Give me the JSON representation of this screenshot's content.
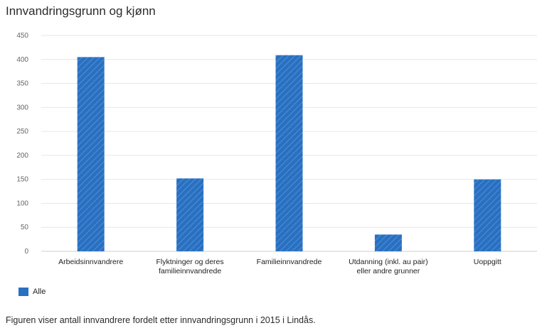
{
  "colors": {
    "bar": "#2a70c1",
    "bar_hatch": "#4e8fd6",
    "grid": "#e6e6e6"
  },
  "caption": "Figuren viser antall innvandrere fordelt etter innvandringsgrunn i 2015 i Lindås.",
  "chart_data": {
    "type": "bar",
    "title": "Innvandringsgrunn og kjønn",
    "xlabel": "",
    "ylabel": "",
    "ylim": [
      0,
      450
    ],
    "yticks": [
      "0",
      "50",
      "100",
      "150",
      "200",
      "250",
      "300",
      "350",
      "400",
      "450"
    ],
    "categories": [
      [
        "Arbeidsinnvandrere"
      ],
      [
        "Flyktninger og deres",
        "familieinnvandrede"
      ],
      [
        "Familieinnvandrede"
      ],
      [
        "Utdanning (inkl. au pair)",
        "eller andre grunner"
      ],
      [
        "Uoppgitt"
      ]
    ],
    "series": [
      {
        "name": "Alle",
        "values": [
          405,
          152,
          409,
          35,
          150
        ]
      }
    ],
    "grid": true,
    "legend": "bottom-left"
  }
}
